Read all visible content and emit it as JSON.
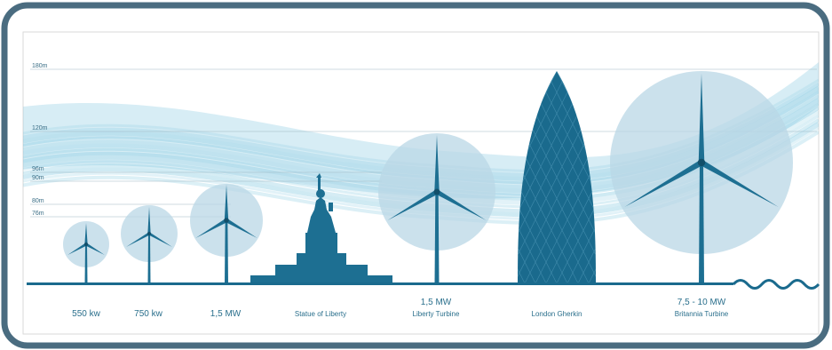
{
  "colors": {
    "frame": "#4a6c80",
    "primary": "#1d6f92",
    "circle": "#b9d7e6",
    "wind": "#5bb3d2",
    "ground": "#1a6a8d"
  },
  "height_markers": [
    {
      "label": "180m",
      "value": 180
    },
    {
      "label": "120m",
      "value": 120
    },
    {
      "label": "96m",
      "value": 96
    },
    {
      "label": "90m",
      "value": 90
    },
    {
      "label": "80m",
      "value": 80
    },
    {
      "label": "76m",
      "value": 76
    }
  ],
  "items": [
    {
      "id": "turbine-550kw",
      "kind": "turbine",
      "label": "550 kw",
      "label2": ""
    },
    {
      "id": "turbine-750kw",
      "kind": "turbine",
      "label": "750 kw",
      "label2": ""
    },
    {
      "id": "turbine-1-5mw",
      "kind": "turbine",
      "label": "1,5 MW",
      "label2": ""
    },
    {
      "id": "statue-of-liberty",
      "kind": "statue",
      "label": "Statue of Liberty",
      "label2": ""
    },
    {
      "id": "liberty-turbine",
      "kind": "turbine",
      "label": "1,5 MW",
      "label2": "Liberty Turbine"
    },
    {
      "id": "london-gherkin",
      "kind": "building",
      "label": "London Gherkin",
      "label2": ""
    },
    {
      "id": "britannia-turbine",
      "kind": "turbine",
      "label": "7,5 - 10 MW",
      "label2": "Britannia Turbine"
    }
  ]
}
